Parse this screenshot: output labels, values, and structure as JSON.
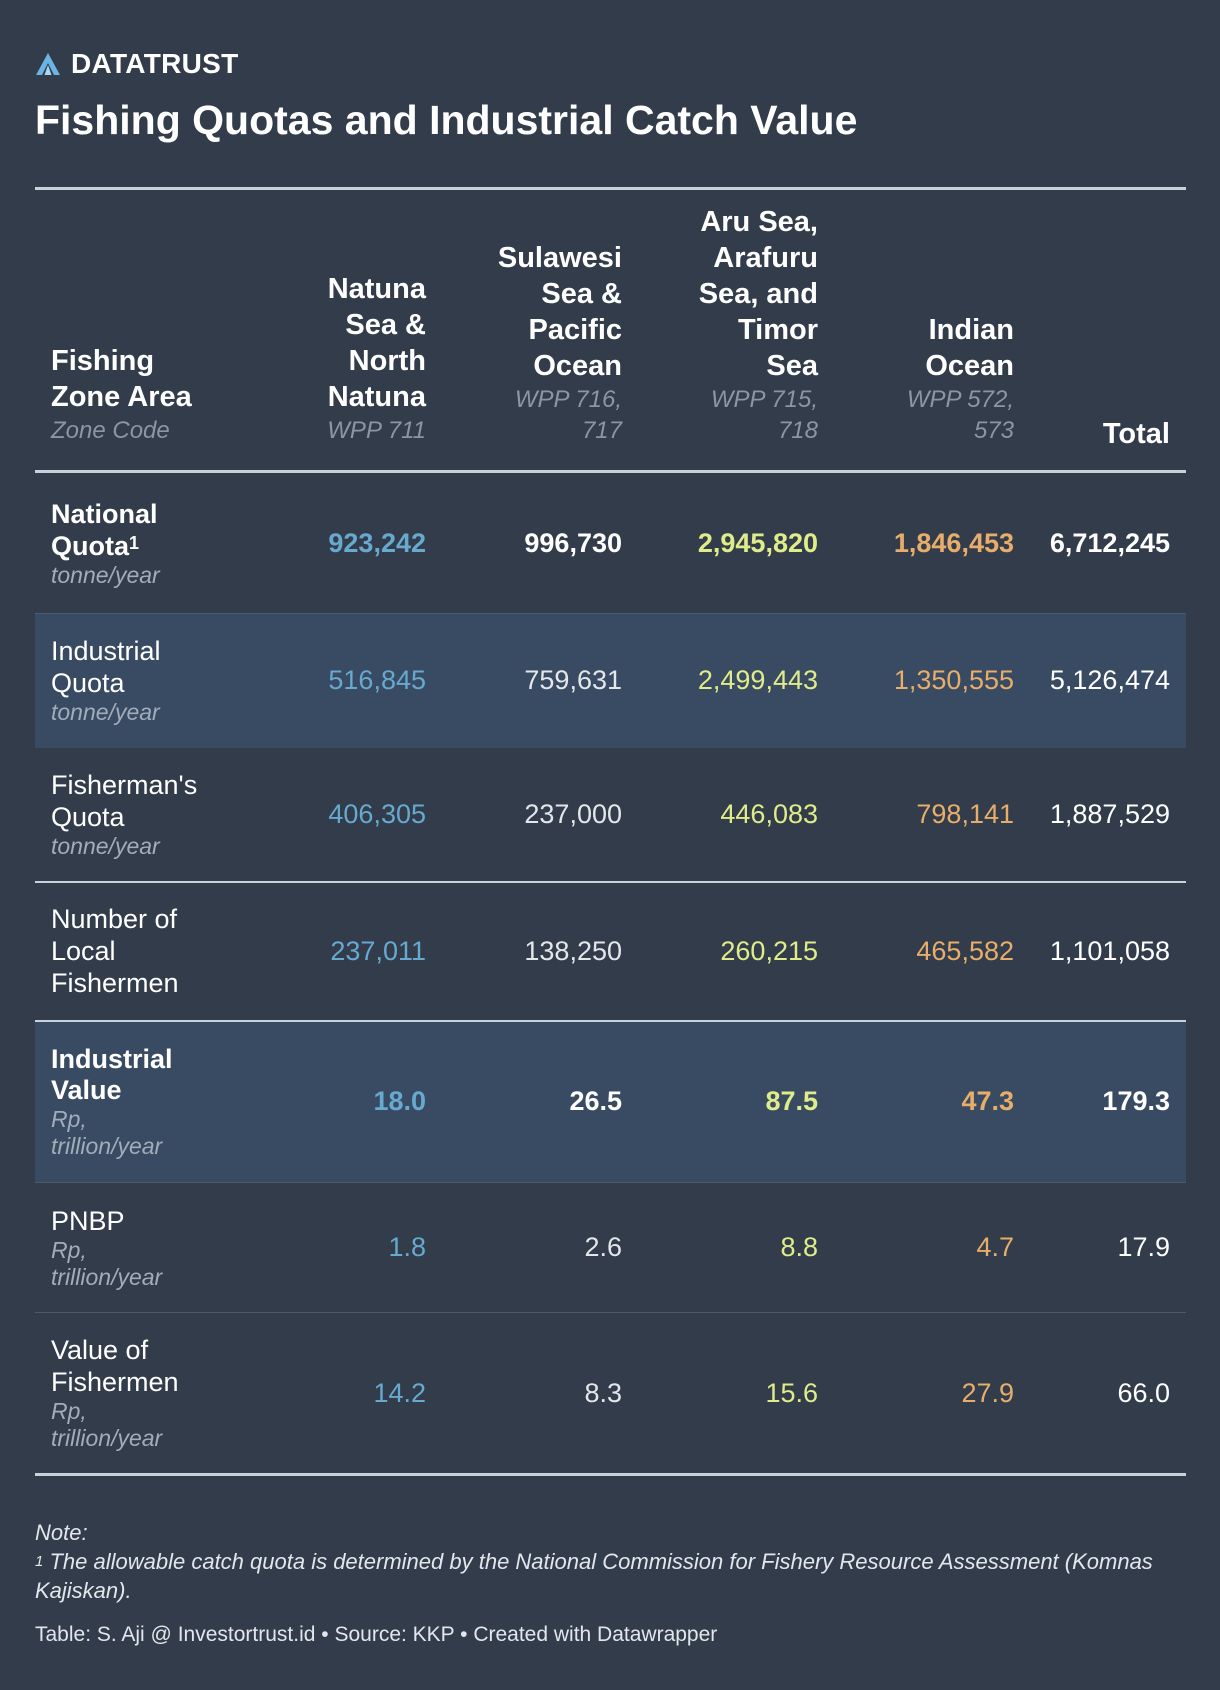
{
  "brand": {
    "name": "DATATRUST",
    "logo_icon": "triangle-logo-icon",
    "logo_color": "#6bb4e6"
  },
  "title": "Fishing Quotas and Industrial Catch Value",
  "chart_data": {
    "type": "table",
    "header": {
      "first": {
        "label": "Fishing Zone Area",
        "sub": "Zone Code"
      },
      "zones": [
        {
          "name": "Natuna Sea & North Natuna",
          "code": "WPP 711"
        },
        {
          "name": "Sulawesi Sea & Pacific Ocean",
          "code": "WPP 716, 717"
        },
        {
          "name": "Aru Sea, Arafuru Sea, and Timor Sea",
          "code": "WPP 715, 718"
        },
        {
          "name": "Indian Ocean",
          "code": "WPP 572, 573"
        }
      ],
      "total": "Total"
    },
    "rows": [
      {
        "label": "National Quota",
        "sup": "1",
        "unit": "tonne/year",
        "values": [
          "923,242",
          "996,730",
          "2,945,820",
          "1,846,453"
        ],
        "total": "6,712,245"
      },
      {
        "label": "Industrial Quota",
        "sup": "",
        "unit": "tonne/year",
        "values": [
          "516,845",
          "759,631",
          "2,499,443",
          "1,350,555"
        ],
        "total": "5,126,474"
      },
      {
        "label": "Fisherman's Quota",
        "sup": "",
        "unit": "tonne/year",
        "values": [
          "406,305",
          "237,000",
          "446,083",
          "798,141"
        ],
        "total": "1,887,529"
      },
      {
        "label": "Number of Local Fishermen",
        "sup": "",
        "unit": "",
        "values": [
          "237,011",
          "138,250",
          "260,215",
          "465,582"
        ],
        "total": "1,101,058"
      },
      {
        "label": "Industrial Value",
        "sup": "",
        "unit": "Rp, trillion/year",
        "values": [
          "18.0",
          "26.5",
          "87.5",
          "47.3"
        ],
        "total": "179.3"
      },
      {
        "label": "PNBP",
        "sup": "",
        "unit": "Rp, trillion/year",
        "values": [
          "1.8",
          "2.6",
          "8.8",
          "4.7"
        ],
        "total": "17.9"
      },
      {
        "label": "Value of Fishermen",
        "sup": "",
        "unit": "Rp, trillion/year",
        "values": [
          "14.2",
          "8.3",
          "15.6",
          "27.9"
        ],
        "total": "66.0"
      }
    ],
    "column_colors": [
      "#67a9cf",
      "#e4e7ea",
      "#e0ec8a",
      "#e7ad6b",
      "#ffffff"
    ]
  },
  "notes": {
    "heading": "Note:",
    "footnote_mark": "1",
    "footnote": "The allowable catch quota is determined by the National Commission for Fishery Resource Assessment (Komnas Kajiskan)."
  },
  "source": "Table: S. Aji @ Investortrust.id • Source: KKP • Created with Datawrapper"
}
